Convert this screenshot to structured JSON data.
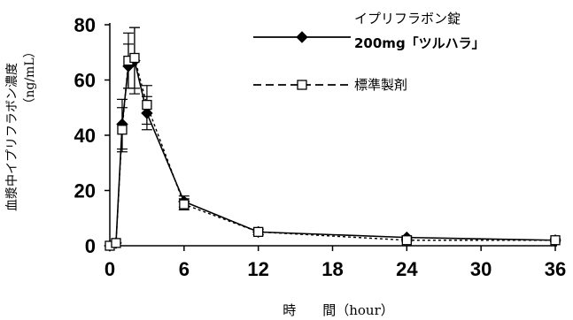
{
  "chart_data": {
    "type": "line",
    "title": "",
    "xlabel": "時　　間（hour）",
    "ylabel_lines": [
      "血漿中イプリフラボン濃度",
      "（ng/mL）"
    ],
    "xlim": [
      0,
      36
    ],
    "ylim": [
      0,
      80
    ],
    "x_ticks": [
      0,
      6,
      12,
      18,
      24,
      30,
      36
    ],
    "y_ticks": [
      0,
      20,
      40,
      60,
      80
    ],
    "grid": false,
    "legend_placement": "top-right",
    "series": [
      {
        "name_lines": [
          "イプリフラボン錠",
          "200mg「ツルハラ」"
        ],
        "marker": "filled-diamond",
        "line_style": "solid",
        "points": [
          {
            "x": 0,
            "y": 0,
            "err": 0
          },
          {
            "x": 0.5,
            "y": 1,
            "err": 0
          },
          {
            "x": 1,
            "y": 44,
            "err": 9
          },
          {
            "x": 1.5,
            "y": 65,
            "err": 8
          },
          {
            "x": 2,
            "y": 67,
            "err": 12
          },
          {
            "x": 3,
            "y": 48,
            "err": 6
          },
          {
            "x": 6,
            "y": 16,
            "err": 2
          },
          {
            "x": 12,
            "y": 5,
            "err": 1
          },
          {
            "x": 24,
            "y": 3,
            "err": 0.5
          },
          {
            "x": 36,
            "y": 2,
            "err": 0.5
          }
        ]
      },
      {
        "name_lines": [
          "標準製剤"
        ],
        "marker": "open-square",
        "line_style": "dashed",
        "points": [
          {
            "x": 0,
            "y": 0,
            "err": 0
          },
          {
            "x": 0.5,
            "y": 1,
            "err": 0
          },
          {
            "x": 1,
            "y": 42,
            "err": 8
          },
          {
            "x": 1.5,
            "y": 67,
            "err": 10
          },
          {
            "x": 2,
            "y": 68,
            "err": 11
          },
          {
            "x": 3,
            "y": 51,
            "err": 7
          },
          {
            "x": 6,
            "y": 15,
            "err": 2
          },
          {
            "x": 12,
            "y": 5,
            "err": 1
          },
          {
            "x": 24,
            "y": 2,
            "err": 0.5
          },
          {
            "x": 36,
            "y": 2,
            "err": 0.5
          }
        ]
      }
    ]
  }
}
